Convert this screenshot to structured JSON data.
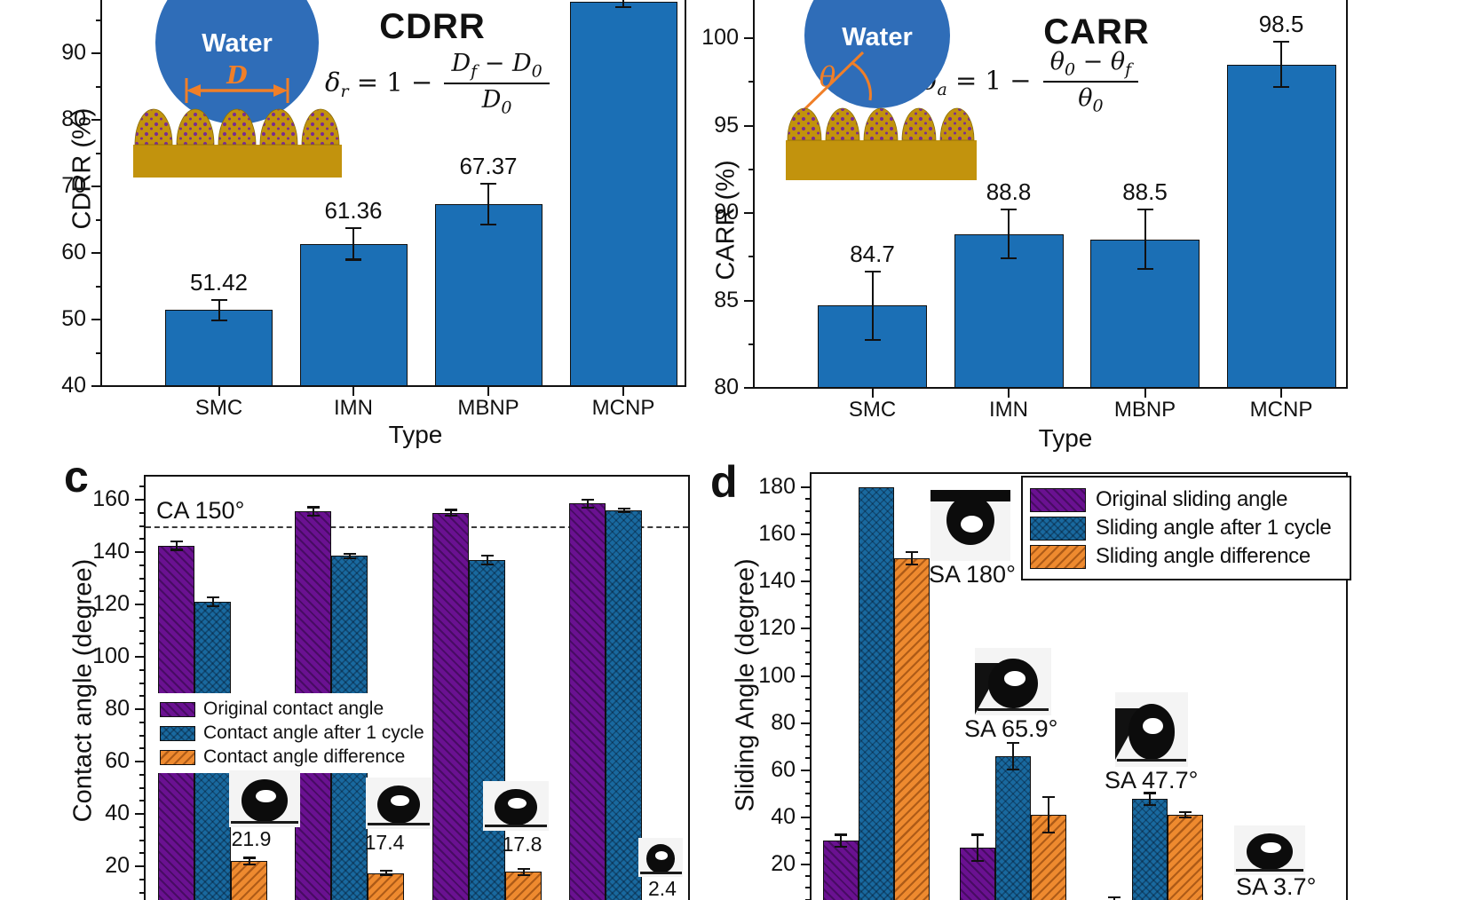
{
  "ui": {
    "colors": {
      "bar_blue": "#1b6fb5",
      "purple": "#6a1191",
      "cycle_blue": "#19699f",
      "orange": "#ee8a2f",
      "droplet_blue": "#2f6db8",
      "substrate_gold": "#c2930d",
      "bump_dot_purple": "#7b2d8e",
      "accent_orange": "#f07f28"
    }
  },
  "chart_data": [
    {
      "id": "a",
      "type": "bar",
      "title": "CDRR",
      "xlabel": "Type",
      "ylabel": "CDRR (%)",
      "categories": [
        "SMC",
        "IMN",
        "MBNP",
        "MCNP"
      ],
      "values": [
        51.42,
        61.36,
        67.37,
        97.7
      ],
      "errors": [
        1.7,
        2.5,
        3.2,
        0.9
      ],
      "value_labels": [
        "51.42",
        "61.36",
        "67.37",
        null
      ],
      "ylim": [
        40,
        98
      ],
      "yticks": [
        40,
        50,
        60,
        70,
        80,
        90
      ],
      "minor_step": 5,
      "grid": false,
      "bar_color": "#1b6fb5",
      "formula": {
        "lhs": "δ",
        "lhs_sub": "r",
        "eq": " = 1 − ",
        "num_a": "D",
        "num_a_sub": "f",
        "num_op": " − ",
        "num_b": "D",
        "num_b_sub": "0",
        "den": "D",
        "den_sub": "0"
      },
      "inset": {
        "droplet_label": "Water",
        "dim_label": "D"
      }
    },
    {
      "id": "b",
      "type": "bar",
      "title": "CARR",
      "xlabel": "Type",
      "ylabel": "CARR (%)",
      "categories": [
        "SMC",
        "IMN",
        "MBNP",
        "MCNP"
      ],
      "values": [
        84.7,
        88.8,
        88.5,
        98.5
      ],
      "errors": [
        2.0,
        1.45,
        1.75,
        1.35
      ],
      "value_labels": [
        "84.7",
        "88.8",
        "88.5",
        "98.5"
      ],
      "ylim": [
        80,
        102.3
      ],
      "yticks": [
        80,
        85,
        90,
        95,
        100
      ],
      "minor_step": 2.5,
      "grid": false,
      "bar_color": "#1b6fb5",
      "formula": {
        "lhs": "δ",
        "lhs_sub": "a",
        "eq": " = 1 − ",
        "num_a": "θ",
        "num_a_sub": "0",
        "num_op": " − ",
        "num_b": "θ",
        "num_b_sub": "f",
        "den": "θ",
        "den_sub": "0"
      },
      "inset": {
        "droplet_label": "Water",
        "angle_label": "θ"
      }
    },
    {
      "id": "c",
      "type": "grouped-bar",
      "panel_letter": "c",
      "ylabel": "Contact angle (degree)",
      "n_groups": 4,
      "series": [
        {
          "name": "Original contact angle",
          "color_key": "purple",
          "values": [
            142.5,
            155.5,
            155,
            158.5
          ],
          "errors": [
            2,
            2,
            1.5,
            2
          ]
        },
        {
          "name": "Contact angle after 1 cycle",
          "color_key": "cycle_blue",
          "values": [
            121,
            138.5,
            137,
            156
          ],
          "errors": [
            2,
            1.2,
            2,
            1
          ]
        },
        {
          "name": "Contact angle difference",
          "color_key": "orange",
          "values": [
            21.9,
            17.4,
            17.8,
            2.4
          ],
          "errors": [
            1.7,
            1.2,
            1.5,
            null
          ]
        }
      ],
      "diff_value_labels": [
        "21.9",
        "17.4",
        "17.8",
        "2.4"
      ],
      "ref_line": {
        "value": 150,
        "label": "CA 150°"
      },
      "ylim_visible": [
        8,
        169
      ],
      "yticks": [
        20,
        40,
        60,
        80,
        100,
        120,
        140,
        160
      ],
      "minor_step": 5,
      "grid": false,
      "legend_position": "center-left"
    },
    {
      "id": "d",
      "type": "grouped-bar",
      "panel_letter": "d",
      "ylabel": "Sliding Angle (degree)",
      "n_groups": 4,
      "series": [
        {
          "name": "Original sliding angle",
          "color_key": "purple",
          "values": [
            30,
            27,
            4,
            null
          ],
          "errors": [
            3,
            6,
            2.5,
            null
          ]
        },
        {
          "name": "Sliding angle after 1 cycle",
          "color_key": "cycle_blue",
          "values": [
            180,
            65.9,
            47.7,
            3.7
          ],
          "errors": [
            null,
            6,
            3,
            null
          ]
        },
        {
          "name": "Sliding angle difference",
          "color_key": "orange",
          "values": [
            150,
            41,
            41,
            null
          ],
          "errors": [
            3,
            8,
            1.5,
            null
          ]
        }
      ],
      "sa_labels": [
        "SA 180°",
        "SA 65.9°",
        "SA 47.7°",
        "SA 3.7°"
      ],
      "ylim_visible": [
        8,
        186
      ],
      "yticks": [
        20,
        40,
        60,
        80,
        100,
        120,
        140,
        160,
        180
      ],
      "minor_step": 5,
      "grid": false,
      "legend_position": "top-right"
    }
  ]
}
